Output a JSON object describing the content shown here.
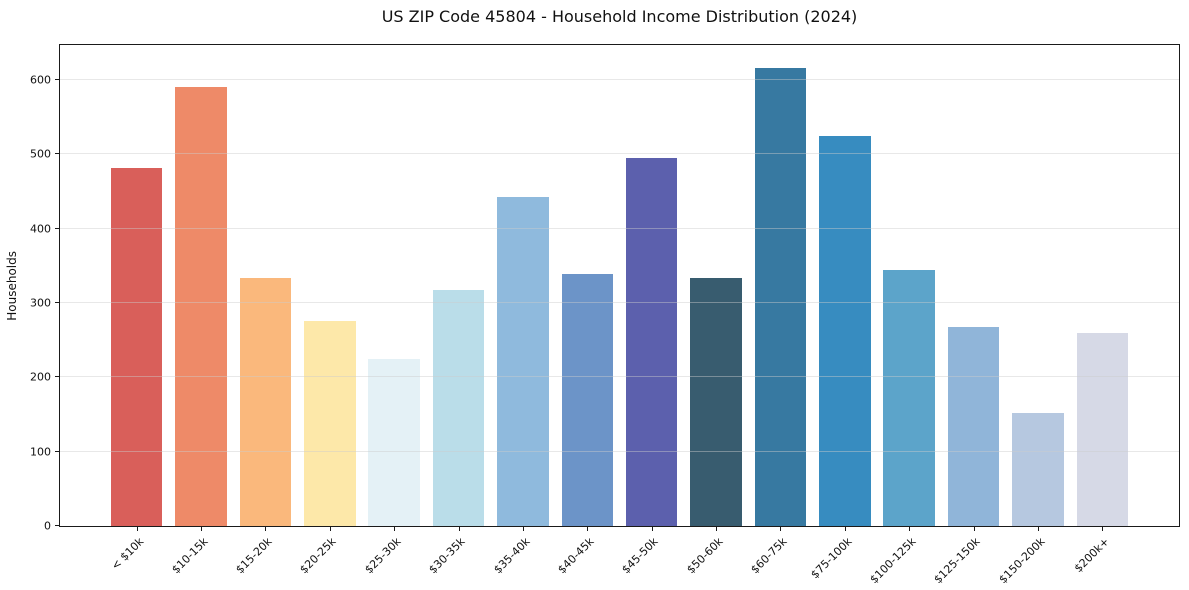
{
  "chart_data": {
    "type": "bar",
    "title": "US ZIP Code 45804 - Household Income Distribution (2024)",
    "xlabel": "",
    "ylabel": "Households",
    "ylim": [
      0,
      647
    ],
    "yticks": [
      0,
      100,
      200,
      300,
      400,
      500,
      600
    ],
    "grid": "horizontal-light-gray-over-bars",
    "legend": "none",
    "categories": [
      "< $10k",
      "$10-15k",
      "$15-20k",
      "$20-25k",
      "$25-30k",
      "$30-35k",
      "$35-40k",
      "$40-45k",
      "$45-50k",
      "$50-60k",
      "$60-75k",
      "$75-100k",
      "$100-125k",
      "$125-150k",
      "$150-200k",
      "$200k+"
    ],
    "values": [
      482,
      590,
      333,
      276,
      225,
      318,
      442,
      339,
      495,
      333,
      616,
      525,
      345,
      268,
      152,
      260
    ],
    "bar_colors": [
      "#d95f5a",
      "#ee8a68",
      "#fab87c",
      "#fde8a9",
      "#e4f1f6",
      "#badde9",
      "#8fbadd",
      "#6c94c8",
      "#5c60ad",
      "#385c6f",
      "#3779a1",
      "#378cc0",
      "#5ca4ca",
      "#90b5d9",
      "#b6c8e0",
      "#d6d9e6"
    ]
  }
}
